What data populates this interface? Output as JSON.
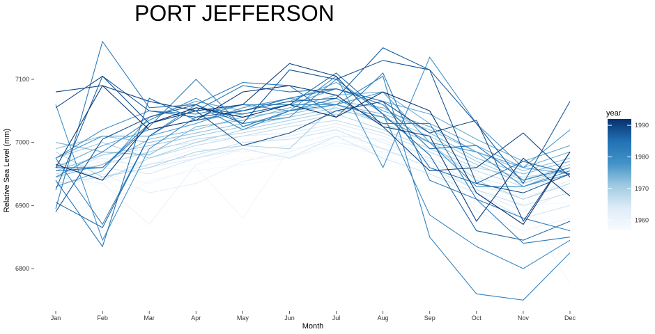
{
  "chart_data": {
    "type": "line",
    "title": "PORT JEFFERSON",
    "xlabel": "Month",
    "ylabel": "Relative Sea Level (mm)",
    "categories": [
      "Jan",
      "Feb",
      "Mar",
      "Apr",
      "May",
      "Jun",
      "Jul",
      "Aug",
      "Sep",
      "Oct",
      "Nov",
      "Dec"
    ],
    "ylim": [
      6750,
      7150
    ],
    "yticks": [
      6800,
      6900,
      7000,
      7100
    ],
    "grid": false,
    "legend": {
      "title": "year",
      "position": "right",
      "type": "colorbar",
      "range": [
        1957,
        1992
      ],
      "ticks": [
        1960,
        1970,
        1980,
        1990
      ],
      "colors": [
        "#f7fbff",
        "#deebf7",
        "#9ecae1",
        "#4292c6",
        "#2171b5",
        "#08306b"
      ]
    },
    "series": [
      {
        "year": 1957,
        "values": [
          6925,
          6935,
          6955,
          6965,
          6975,
          6980,
          7005,
          6995,
          6985,
          6960,
          6940,
          6945
        ]
      },
      {
        "year": 1958,
        "values": [
          6910,
          6890,
          6940,
          6955,
          6965,
          6975,
          6995,
          6980,
          6950,
          6910,
          6900,
          6905
        ]
      },
      {
        "year": 1959,
        "values": [
          6930,
          6950,
          6935,
          6960,
          6880,
          6990,
          7000,
          6990,
          6985,
          6950,
          6900,
          6775
        ]
      },
      {
        "year": 1960,
        "values": [
          6950,
          6970,
          6965,
          6990,
          6985,
          6995,
          7015,
          6990,
          6960,
          6930,
          6915,
          6930
        ]
      },
      {
        "year": 1961,
        "values": [
          6945,
          6935,
          6870,
          6965,
          6990,
          6975,
          7000,
          6985,
          6975,
          6890,
          6860,
          6880
        ]
      },
      {
        "year": 1962,
        "values": [
          6955,
          6950,
          6920,
          6935,
          6970,
          6985,
          7010,
          7005,
          6965,
          6925,
          6890,
          6925
        ]
      },
      {
        "year": 1963,
        "values": [
          6960,
          6975,
          6960,
          6975,
          6995,
          7010,
          7025,
          7000,
          6970,
          6935,
          6910,
          6940
        ]
      },
      {
        "year": 1964,
        "values": [
          6940,
          6980,
          6990,
          7000,
          7010,
          7015,
          7030,
          7010,
          6975,
          6945,
          6925,
          6950
        ]
      },
      {
        "year": 1965,
        "values": [
          6965,
          6960,
          6950,
          6975,
          6990,
          6975,
          7010,
          6975,
          6950,
          6920,
          6880,
          6900
        ]
      },
      {
        "year": 1966,
        "values": [
          6935,
          6945,
          6965,
          6980,
          7000,
          7005,
          7020,
          6990,
          6960,
          6925,
          6900,
          6920
        ]
      },
      {
        "year": 1967,
        "values": [
          6970,
          6940,
          6975,
          6995,
          7010,
          7025,
          7035,
          7015,
          6985,
          6955,
          6930,
          6960
        ]
      },
      {
        "year": 1968,
        "values": [
          6950,
          6965,
          6985,
          7005,
          7015,
          7030,
          7045,
          7020,
          6990,
          6960,
          6945,
          6955
        ]
      },
      {
        "year": 1969,
        "values": [
          6985,
          6945,
          6960,
          6985,
          6995,
          6990,
          7060,
          7030,
          7000,
          6940,
          6910,
          6935
        ]
      },
      {
        "year": 1970,
        "values": [
          6975,
          7000,
          6975,
          7000,
          7020,
          7035,
          7050,
          7040,
          7010,
          6970,
          6940,
          6965
        ]
      },
      {
        "year": 1971,
        "values": [
          6955,
          6980,
          6995,
          7010,
          7025,
          7040,
          7055,
          7030,
          7000,
          6965,
          6935,
          6960
        ]
      },
      {
        "year": 1972,
        "values": [
          6990,
          7010,
          7000,
          7015,
          7030,
          7045,
          7060,
          7045,
          7020,
          6985,
          6955,
          6975
        ]
      },
      {
        "year": 1973,
        "values": [
          6945,
          6965,
          7005,
          7020,
          7040,
          7050,
          7065,
          7055,
          7015,
          6975,
          6950,
          6970
        ]
      },
      {
        "year": 1974,
        "values": [
          7000,
          6985,
          6980,
          7025,
          7035,
          7055,
          7075,
          7080,
          7030,
          6995,
          6960,
          6985
        ]
      },
      {
        "year": 1975,
        "values": [
          6960,
          6995,
          7020,
          7035,
          7045,
          7060,
          7085,
          7065,
          7045,
          7005,
          6970,
          6995
        ]
      },
      {
        "year": 1976,
        "values": [
          6930,
          6955,
          7040,
          7065,
          7050,
          7065,
          7095,
          7050,
          7025,
          6985,
          6960,
          6950
        ]
      },
      {
        "year": 1977,
        "values": [
          6975,
          7010,
          7010,
          7030,
          7055,
          7070,
          7060,
          7080,
          7000,
          6985,
          6930,
          6950
        ]
      },
      {
        "year": 1978,
        "values": [
          7060,
          6845,
          6990,
          7040,
          7060,
          7050,
          7105,
          6960,
          7135,
          7030,
          6960,
          7020
        ]
      },
      {
        "year": 1979,
        "values": [
          6975,
          7020,
          7050,
          7045,
          7060,
          7060,
          7060,
          7040,
          7000,
          6930,
          6930,
          6955
        ]
      },
      {
        "year": 1980,
        "values": [
          6945,
          6985,
          7035,
          7070,
          7030,
          7040,
          7100,
          7045,
          6885,
          6835,
          6800,
          6845
        ]
      },
      {
        "year": 1981,
        "values": [
          6975,
          6870,
          7010,
          7060,
          7020,
          7050,
          7060,
          7105,
          6850,
          6760,
          6750,
          6825
        ]
      },
      {
        "year": 1982,
        "values": [
          6960,
          6960,
          7025,
          7100,
          7025,
          7050,
          7070,
          7030,
          7030,
          6910,
          6880,
          6860
        ]
      },
      {
        "year": 1983,
        "values": [
          6895,
          7160,
          7055,
          7060,
          7095,
          7090,
          7040,
          7110,
          6940,
          6910,
          6840,
          6850
        ]
      },
      {
        "year": 1984,
        "values": [
          6955,
          6960,
          7030,
          7050,
          7090,
          7080,
          7085,
          7060,
          6990,
          6995,
          6940,
          6960
        ]
      },
      {
        "year": 1985,
        "values": [
          6940,
          6835,
          7070,
          7035,
          7050,
          7070,
          7085,
          7065,
          6960,
          6935,
          6970,
          6950
        ]
      },
      {
        "year": 1986,
        "values": [
          6905,
          6865,
          7010,
          7055,
          7045,
          7060,
          7110,
          7045,
          6980,
          6860,
          6845,
          6875
        ]
      },
      {
        "year": 1987,
        "values": [
          6925,
          7105,
          7050,
          7040,
          7050,
          7065,
          7070,
          7150,
          7115,
          7030,
          6935,
          7065
        ]
      },
      {
        "year": 1988,
        "values": [
          6890,
          7005,
          7040,
          7060,
          7030,
          7115,
          7100,
          7130,
          7115,
          6935,
          6920,
          6950
        ]
      },
      {
        "year": 1989,
        "values": [
          7055,
          7105,
          7030,
          7050,
          6995,
          7015,
          7050,
          7065,
          7015,
          7035,
          6875,
          6985
        ]
      },
      {
        "year": 1990,
        "values": [
          7080,
          7090,
          7065,
          7050,
          7060,
          7125,
          7105,
          7025,
          6955,
          6960,
          7015,
          6945
        ]
      },
      {
        "year": 1991,
        "values": [
          6960,
          7090,
          7020,
          7035,
          7080,
          7090,
          7075,
          7025,
          7010,
          6875,
          6975,
          6915
        ]
      },
      {
        "year": 1992,
        "values": [
          6965,
          6940,
          7030,
          7055,
          7040,
          7060,
          7040,
          7080,
          7050,
          6920,
          6870,
          6985
        ]
      }
    ]
  }
}
